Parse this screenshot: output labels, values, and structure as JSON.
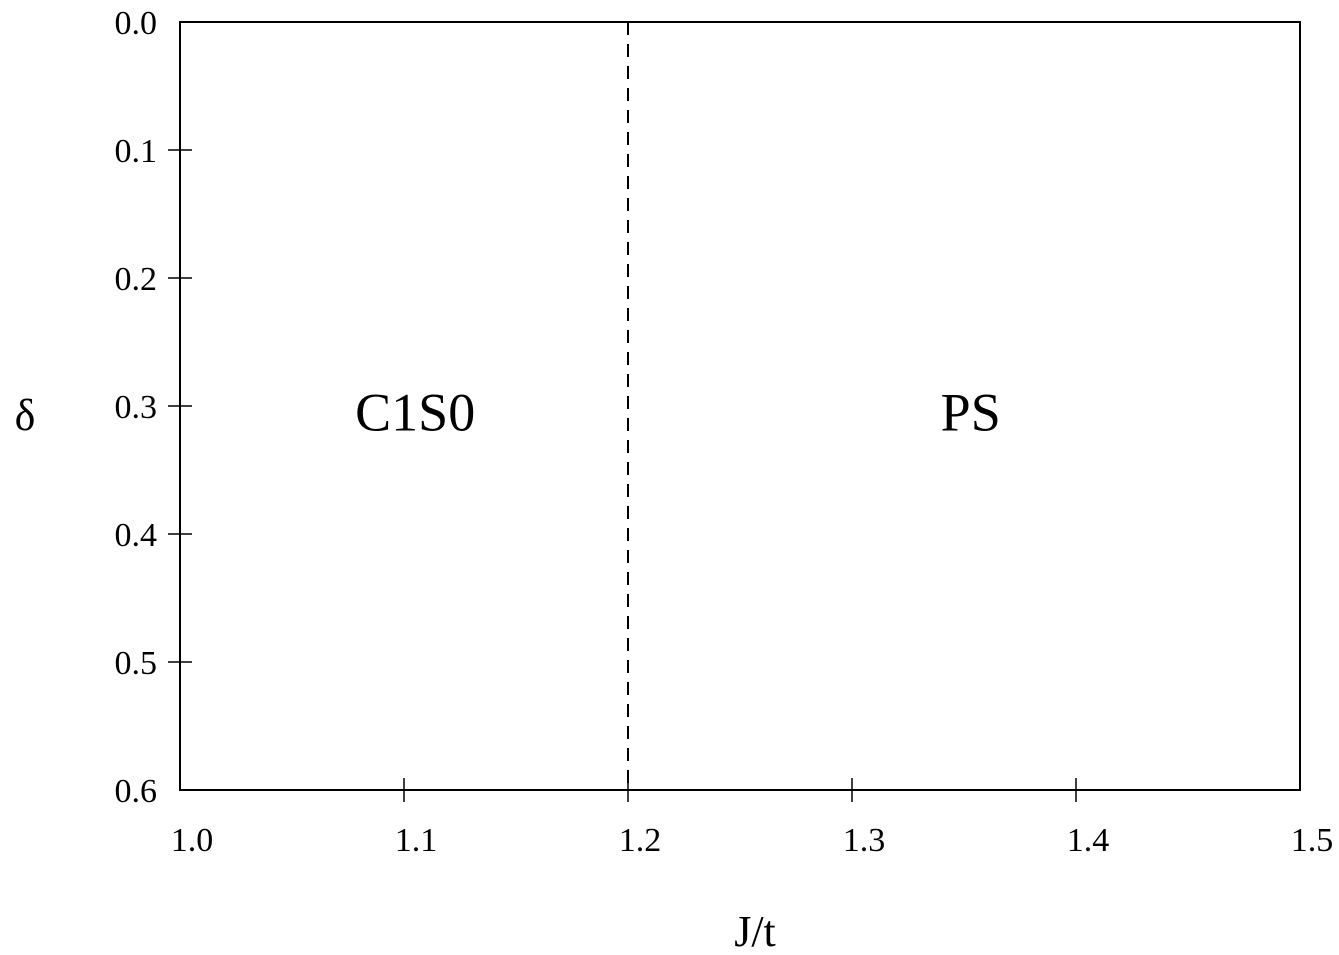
{
  "chart_data": {
    "type": "line",
    "title": "",
    "xlabel": "J/t",
    "ylabel": "δ",
    "xlim": [
      1.0,
      1.5
    ],
    "ylim": [
      0.6,
      0.0
    ],
    "y_axis_inverted": true,
    "grid": false,
    "x_ticks": [
      {
        "value": 1.0,
        "label": "1.0"
      },
      {
        "value": 1.1,
        "label": "1.1"
      },
      {
        "value": 1.2,
        "label": "1.2"
      },
      {
        "value": 1.3,
        "label": "1.3"
      },
      {
        "value": 1.4,
        "label": "1.4"
      },
      {
        "value": 1.5,
        "label": "1.5"
      }
    ],
    "y_ticks": [
      {
        "value": 0.0,
        "label": "0.0"
      },
      {
        "value": 0.1,
        "label": "0.1"
      },
      {
        "value": 0.2,
        "label": "0.2"
      },
      {
        "value": 0.3,
        "label": "0.3"
      },
      {
        "value": 0.4,
        "label": "0.4"
      },
      {
        "value": 0.5,
        "label": "0.5"
      },
      {
        "value": 0.6,
        "label": "0.6"
      }
    ],
    "series": [
      {
        "style": "dashed",
        "color": "#000000",
        "x": [
          1.2,
          1.2
        ],
        "y": [
          0.0,
          0.6
        ]
      }
    ],
    "regions": [
      {
        "label": "C1S0",
        "x": 1.105,
        "y": 0.305
      },
      {
        "label": "PS",
        "x": 1.353,
        "y": 0.305
      }
    ]
  }
}
